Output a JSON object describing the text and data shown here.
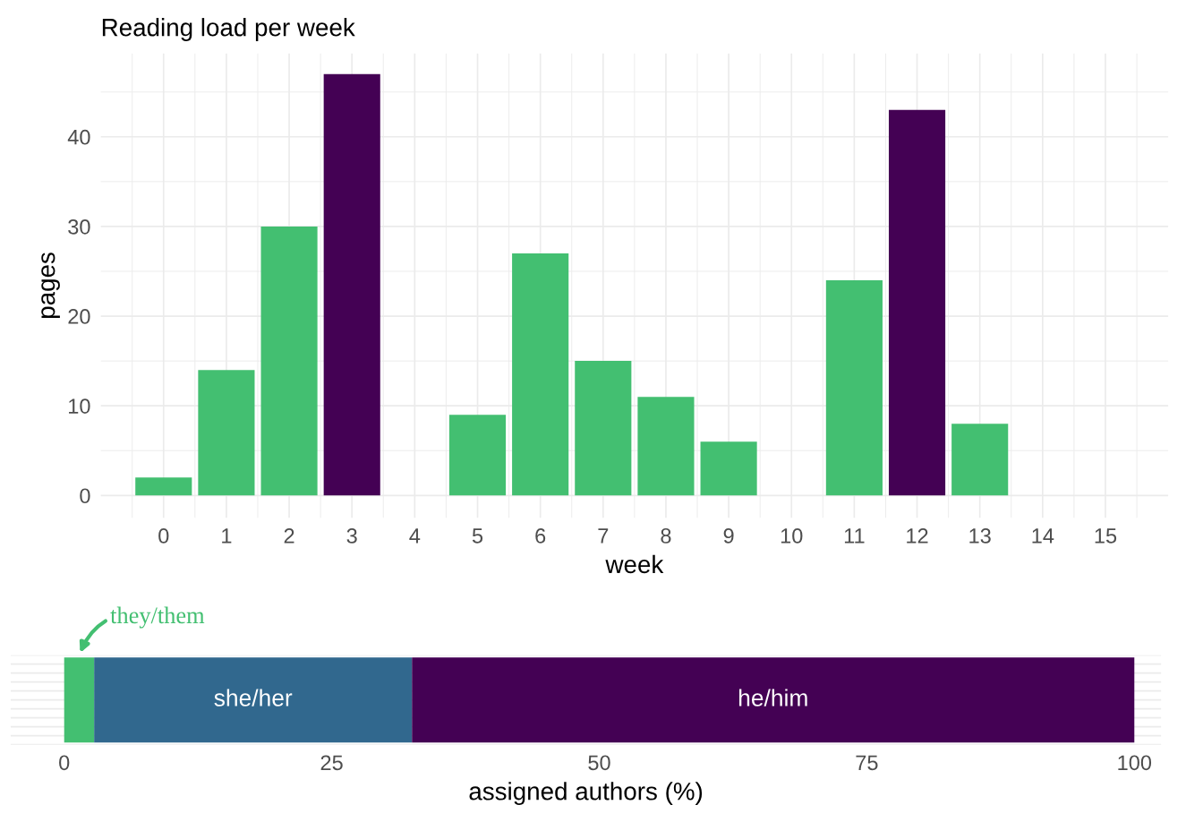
{
  "chart_data": [
    {
      "type": "bar",
      "title": "Reading load per week",
      "xlabel": "week",
      "ylabel": "pages",
      "categories": [
        "0",
        "1",
        "2",
        "3",
        "4",
        "5",
        "6",
        "7",
        "8",
        "9",
        "10",
        "11",
        "12",
        "13",
        "14",
        "15"
      ],
      "values": [
        2,
        14,
        30,
        47,
        null,
        9,
        27,
        15,
        11,
        6,
        null,
        24,
        43,
        8,
        null,
        null
      ],
      "colors": [
        "#43bf71",
        "#43bf71",
        "#43bf71",
        "#440154",
        null,
        "#43bf71",
        "#43bf71",
        "#43bf71",
        "#43bf71",
        "#43bf71",
        null,
        "#43bf71",
        "#440154",
        "#43bf71",
        null,
        null
      ],
      "ylim": [
        -2.5,
        49.3
      ],
      "yticks": [
        0,
        10,
        20,
        30,
        40
      ],
      "grid": true
    },
    {
      "type": "bar",
      "orientation": "horizontal",
      "stacked": true,
      "xlabel": "assigned authors (%)",
      "categories": [
        null
      ],
      "series": [
        {
          "name": "they/them",
          "color": "#43bf71",
          "values": [
            2.8
          ]
        },
        {
          "name": "she/her",
          "color": "#31688e",
          "values": [
            29.7
          ]
        },
        {
          "name": "he/him",
          "color": "#440154",
          "values": [
            67.5
          ]
        }
      ],
      "xlim": [
        -5,
        102.5
      ],
      "xticks": [
        0,
        25,
        50,
        75,
        100
      ],
      "tick_labels": "x",
      "grid": "y"
    }
  ]
}
